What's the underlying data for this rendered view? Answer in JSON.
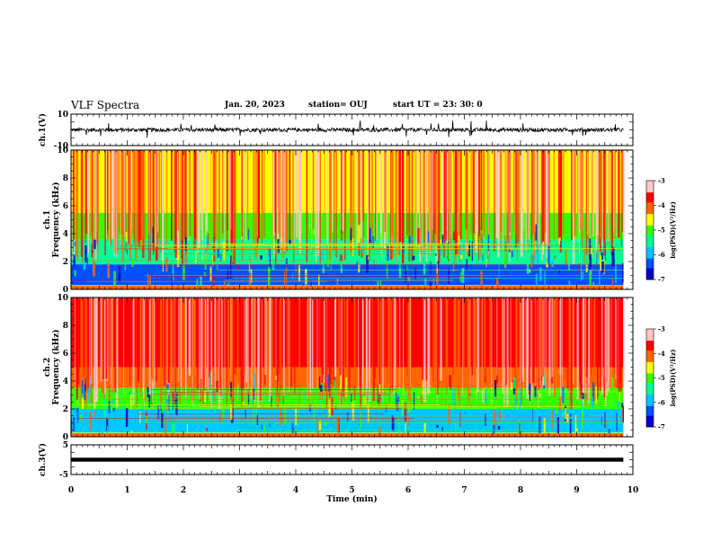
{
  "header": {
    "title": "VLF Spectra",
    "date": "Jan. 20, 2023",
    "station": "station= OUJ",
    "start": "start  UT  =   23: 30: 0"
  },
  "chart_data": [
    {
      "type": "line",
      "name": "waveform-ch1",
      "ylabel": "ch.1(V)",
      "ylim": [
        -10,
        10
      ],
      "ytick_labels": [
        "10",
        "-10"
      ],
      "x_range_min": [
        0,
        9.83
      ],
      "baseline_v": 0,
      "envelope_v": [
        -1.2,
        1.2
      ],
      "spike_v": [
        -5,
        6
      ]
    },
    {
      "type": "heatmap",
      "name": "spectrogram-ch1",
      "ylabel_top": "ch.1",
      "ylabel": "Frequency  (kHz)",
      "ylim": [
        0,
        10
      ],
      "ytick_labels": [
        "0",
        "2",
        "4",
        "6",
        "8",
        "10"
      ],
      "xlim": [
        0,
        10
      ],
      "x_extent_min": [
        0,
        9.83
      ],
      "colorbar": {
        "label": "log(PSD)(V²/Hz)",
        "range": [
          -7,
          -3
        ],
        "tick_labels": [
          "-3",
          "-4",
          "-5",
          "-6",
          "-7"
        ]
      },
      "bands": [
        {
          "from_khz": 0,
          "to_khz": 0.3,
          "level": -4.6
        },
        {
          "from_khz": 0.3,
          "to_khz": 1.8,
          "level": -6.5
        },
        {
          "from_khz": 1.8,
          "to_khz": 3.6,
          "level": -5.6
        },
        {
          "from_khz": 3.6,
          "to_khz": 5.5,
          "level": -5.0
        },
        {
          "from_khz": 5.5,
          "to_khz": 10,
          "level": -4.6
        }
      ]
    },
    {
      "type": "heatmap",
      "name": "spectrogram-ch2",
      "ylabel_top": "ch.2",
      "ylabel": "Frequency  (kHz)",
      "ylim": [
        0,
        10
      ],
      "ytick_labels": [
        "0",
        "2",
        "4",
        "6",
        "8",
        "10"
      ],
      "xlim": [
        0,
        10
      ],
      "x_extent_min": [
        0,
        9.83
      ],
      "colorbar": {
        "label": "log(PSD)(V²/Hz)",
        "range": [
          -7,
          -3
        ],
        "tick_labels": [
          "-3",
          "-4",
          "-5",
          "-6",
          "-7"
        ]
      },
      "bands": [
        {
          "from_khz": 0,
          "to_khz": 0.3,
          "level": -4.6
        },
        {
          "from_khz": 0.3,
          "to_khz": 2.0,
          "level": -5.9
        },
        {
          "from_khz": 2.0,
          "to_khz": 3.5,
          "level": -5.2
        },
        {
          "from_khz": 3.5,
          "to_khz": 5.0,
          "level": -4.2
        },
        {
          "from_khz": 5.0,
          "to_khz": 10,
          "level": -3.8
        }
      ]
    },
    {
      "type": "line",
      "name": "waveform-ch3",
      "ylabel": "ch.3(V)",
      "ylim": [
        -5,
        5
      ],
      "ytick_labels": [
        "5",
        "-5"
      ],
      "x_range_min": [
        0,
        9.83
      ],
      "baseline_v": 0
    }
  ],
  "xaxis": {
    "label": "Time  (min)",
    "min": 0,
    "max": 10,
    "tick_labels": [
      "0",
      "1",
      "2",
      "3",
      "4",
      "5",
      "6",
      "7",
      "8",
      "9",
      "10"
    ]
  },
  "colors": {
    "axis": "#000000",
    "trace": "#000000",
    "colormap": [
      "#000000",
      "#0000c8",
      "#0050ff",
      "#00c8ff",
      "#00ff96",
      "#32ff00",
      "#ffff00",
      "#ff6400",
      "#ff0000",
      "#ffc8c8",
      "#ffffff"
    ]
  }
}
